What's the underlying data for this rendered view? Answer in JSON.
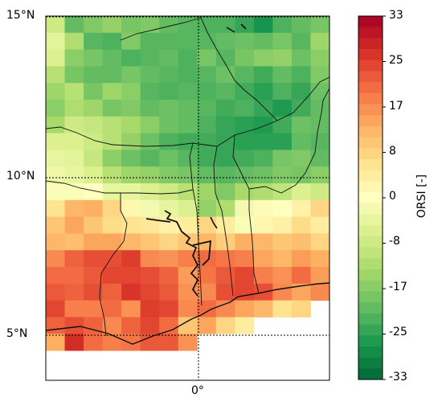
{
  "map": {
    "lat_labels": [
      "15°N",
      "10°N",
      "5°N"
    ],
    "lon_label": "0°",
    "lat_range": [
      4,
      15
    ],
    "lon_range": [
      -4.75,
      2.5
    ]
  },
  "colorbar": {
    "title": "ORSI [-]",
    "ticks": [
      "33",
      "25",
      "17",
      "8",
      "0",
      "-8",
      "-17",
      "-25",
      "-33"
    ],
    "range": [
      -33,
      33
    ],
    "colors": [
      "#006837",
      "#1a9850",
      "#66bd63",
      "#a6d96a",
      "#d9ef8b",
      "#ffffbf",
      "#fee08b",
      "#fdae61",
      "#f46d43",
      "#d73027",
      "#a50026"
    ]
  },
  "chart_data": {
    "type": "heatmap",
    "colorbar_label": "ORSI [-]",
    "value_range": [
      -33,
      33
    ],
    "rows_top_to_bottom_values": [
      [
        -8,
        -20,
        -17,
        -15,
        -18,
        -17,
        -20,
        -21,
        -22,
        -22,
        -24,
        -27,
        -22,
        -20,
        -18
      ],
      [
        -5,
        -12,
        -21,
        -22,
        -17,
        -21,
        -21,
        -21,
        -21,
        -20,
        -19,
        -20,
        -18,
        -21,
        -14
      ],
      [
        -6,
        -16,
        -18,
        -20,
        -22,
        -21,
        -20,
        -22,
        -18,
        -21,
        -18,
        -16,
        -15,
        -19,
        -16
      ],
      [
        -11,
        -18,
        -20,
        -20,
        -18,
        -20,
        -21,
        -22,
        -21,
        -19,
        -21,
        -23,
        -20,
        -22,
        -17
      ],
      [
        -14,
        -11,
        -18,
        -14,
        -16,
        -21,
        -22,
        -21,
        -22,
        -21,
        -23,
        -25,
        -22,
        -24,
        -19
      ],
      [
        -16,
        -12,
        -14,
        -18,
        -17,
        -20,
        -19,
        -20,
        -21,
        -23,
        -22,
        -24,
        -26,
        -23,
        -20
      ],
      [
        -13,
        -8,
        -9,
        -11,
        -13,
        -16,
        -19,
        -20,
        -22,
        -24,
        -25,
        -26,
        -23,
        -19,
        -20
      ],
      [
        -6,
        -6,
        -8,
        -11,
        -15,
        -19,
        -22,
        -23,
        -23,
        -24,
        -25,
        -25,
        -25,
        -20,
        -21
      ],
      [
        -4,
        -5,
        -9,
        -16,
        -19,
        -21,
        -19,
        -21,
        -23,
        -24,
        -23,
        -22,
        -18,
        -17,
        -20
      ],
      [
        -3,
        -4,
        -6,
        -11,
        -14,
        -15,
        -17,
        -18,
        -20,
        -21,
        -20,
        -19,
        -17,
        -18,
        -16
      ],
      [
        -1,
        -1,
        0,
        -4,
        -4,
        -6,
        -8,
        -11,
        -14,
        -17,
        -13,
        -12,
        -10,
        -6,
        -8
      ],
      [
        6,
        12,
        13,
        8,
        2,
        -2,
        -4,
        -6,
        -15,
        -12,
        -2,
        1,
        0,
        3,
        8
      ],
      [
        10,
        14,
        10,
        7,
        6,
        5,
        3,
        4,
        8,
        4,
        -1,
        2,
        3,
        7,
        4
      ],
      [
        12,
        11,
        14,
        14,
        12,
        10,
        8,
        10,
        12,
        9,
        13,
        12,
        10,
        11,
        8
      ],
      [
        17,
        21,
        23,
        23,
        25,
        17,
        16,
        18,
        20,
        19,
        18,
        14,
        12,
        15,
        13
      ],
      [
        20,
        20,
        22,
        24,
        24,
        23,
        21,
        15,
        19,
        22,
        24,
        18,
        16,
        20,
        15
      ],
      [
        22,
        21,
        23,
        21,
        26,
        24,
        22,
        16,
        17,
        23,
        24,
        23,
        17,
        14,
        17
      ],
      [
        24,
        18,
        18,
        20,
        16,
        25,
        24,
        17,
        20,
        17,
        14,
        12,
        6,
        8,
        null
      ],
      [
        21,
        23,
        21,
        17,
        21,
        24,
        20,
        10,
        14,
        8,
        4,
        null,
        null,
        null,
        null
      ],
      [
        13,
        27,
        20,
        18,
        19,
        22,
        22,
        16,
        null,
        null,
        null,
        null,
        null,
        null,
        null
      ]
    ]
  }
}
